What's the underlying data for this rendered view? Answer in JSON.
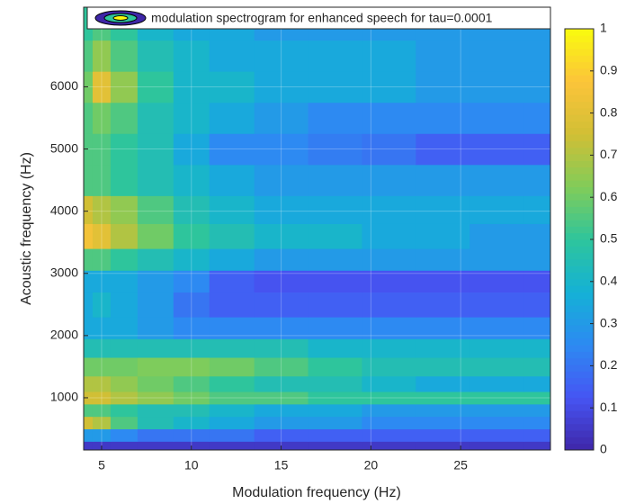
{
  "chart_data": {
    "type": "contour",
    "xlabel": "Modulation frequency (Hz)",
    "ylabel": "Acoustic frequency (Hz)",
    "legend": "modulation spectrogram for enhanced speech for tau=0.0001",
    "legend_position": "top",
    "grid": true,
    "xlim": [
      4,
      30
    ],
    "ylim": [
      160,
      7280
    ],
    "xticks": [
      5,
      10,
      15,
      20,
      25
    ],
    "yticks": [
      1000,
      2000,
      3000,
      4000,
      5000,
      6000
    ],
    "clim": [
      0,
      1
    ],
    "cticks": [
      0,
      0.1,
      0.2,
      0.3,
      0.4,
      0.5,
      0.6,
      0.7,
      0.8,
      0.9,
      1
    ],
    "colormap": [
      "#3e26a8",
      "#4655f3",
      "#2d8af2",
      "#14b1d6",
      "#2ec59c",
      "#81cc59",
      "#d1bf35",
      "#fcc43a",
      "#f9fb0e"
    ],
    "x": [
      4,
      5,
      6,
      8,
      10,
      12,
      15,
      18,
      21,
      24,
      27,
      30
    ],
    "y": [
      200,
      400,
      600,
      800,
      1000,
      1200,
      1500,
      1800,
      2100,
      2500,
      2900,
      3200,
      3600,
      4000,
      4500,
      5000,
      5500,
      6000,
      6500,
      7000
    ],
    "z": [
      [
        0.05,
        0.05,
        0.05,
        0.05,
        0.05,
        0.05,
        0.05,
        0.05,
        0.05,
        0.05,
        0.05,
        0.05
      ],
      [
        0.3,
        0.3,
        0.25,
        0.2,
        0.2,
        0.2,
        0.15,
        0.15,
        0.15,
        0.15,
        0.15,
        0.15
      ],
      [
        0.75,
        0.7,
        0.55,
        0.45,
        0.4,
        0.35,
        0.3,
        0.3,
        0.25,
        0.25,
        0.25,
        0.25
      ],
      [
        0.55,
        0.55,
        0.5,
        0.45,
        0.45,
        0.4,
        0.35,
        0.35,
        0.3,
        0.3,
        0.3,
        0.3
      ],
      [
        0.75,
        0.75,
        0.7,
        0.65,
        0.6,
        0.55,
        0.55,
        0.5,
        0.5,
        0.5,
        0.5,
        0.5
      ],
      [
        0.7,
        0.7,
        0.65,
        0.6,
        0.55,
        0.5,
        0.45,
        0.45,
        0.4,
        0.35,
        0.35,
        0.35
      ],
      [
        0.6,
        0.6,
        0.6,
        0.62,
        0.62,
        0.6,
        0.55,
        0.5,
        0.45,
        0.45,
        0.45,
        0.45
      ],
      [
        0.45,
        0.45,
        0.45,
        0.45,
        0.45,
        0.45,
        0.45,
        0.4,
        0.4,
        0.4,
        0.4,
        0.4
      ],
      [
        0.35,
        0.35,
        0.35,
        0.3,
        0.25,
        0.25,
        0.25,
        0.25,
        0.25,
        0.25,
        0.25,
        0.25
      ],
      [
        0.35,
        0.4,
        0.35,
        0.3,
        0.2,
        0.15,
        0.15,
        0.15,
        0.15,
        0.15,
        0.15,
        0.15
      ],
      [
        0.35,
        0.35,
        0.35,
        0.3,
        0.25,
        0.15,
        0.12,
        0.12,
        0.12,
        0.12,
        0.12,
        0.12
      ],
      [
        0.55,
        0.55,
        0.5,
        0.45,
        0.4,
        0.35,
        0.3,
        0.3,
        0.3,
        0.3,
        0.3,
        0.3
      ],
      [
        0.85,
        0.8,
        0.7,
        0.6,
        0.5,
        0.45,
        0.4,
        0.4,
        0.35,
        0.35,
        0.3,
        0.3
      ],
      [
        0.75,
        0.7,
        0.65,
        0.55,
        0.45,
        0.4,
        0.35,
        0.35,
        0.35,
        0.35,
        0.35,
        0.35
      ],
      [
        0.55,
        0.55,
        0.5,
        0.45,
        0.4,
        0.35,
        0.3,
        0.3,
        0.3,
        0.3,
        0.3,
        0.3
      ],
      [
        0.55,
        0.55,
        0.5,
        0.45,
        0.35,
        0.25,
        0.25,
        0.22,
        0.2,
        0.15,
        0.15,
        0.15
      ],
      [
        0.55,
        0.6,
        0.55,
        0.45,
        0.4,
        0.35,
        0.3,
        0.25,
        0.25,
        0.25,
        0.25,
        0.25
      ],
      [
        0.6,
        0.8,
        0.65,
        0.5,
        0.4,
        0.4,
        0.35,
        0.35,
        0.35,
        0.3,
        0.3,
        0.3
      ],
      [
        0.55,
        0.65,
        0.55,
        0.45,
        0.4,
        0.35,
        0.35,
        0.35,
        0.35,
        0.3,
        0.3,
        0.3
      ],
      [
        0.5,
        0.55,
        0.5,
        0.4,
        0.35,
        0.35,
        0.3,
        0.3,
        0.3,
        0.3,
        0.3,
        0.3
      ]
    ]
  }
}
